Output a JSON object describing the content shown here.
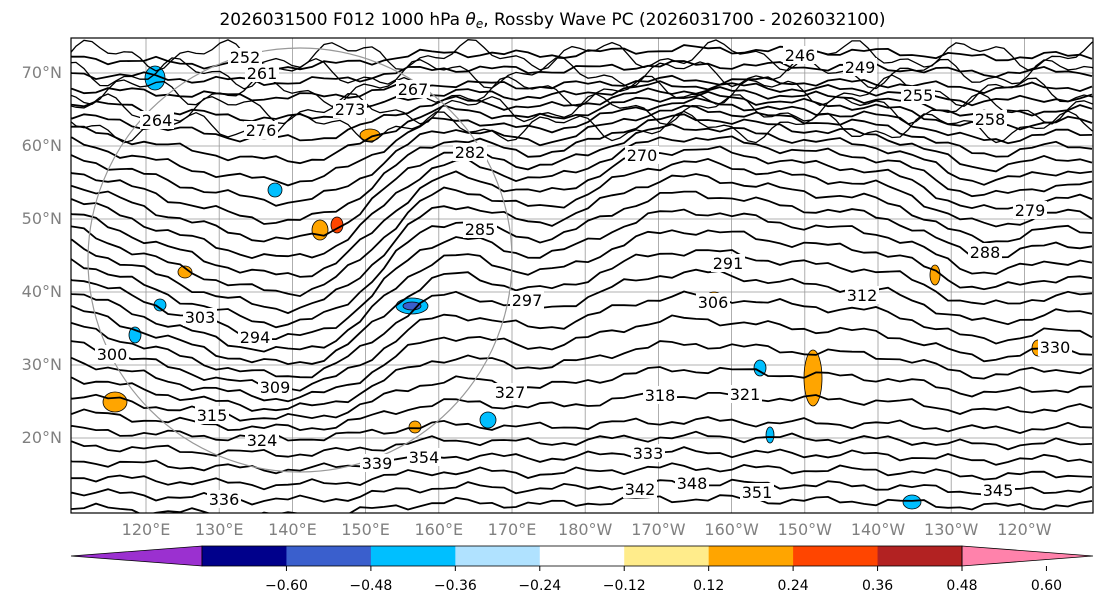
{
  "title": {
    "prefix": "2026031500 F012 1000 hPa ",
    "theta": "θ",
    "sub": "e",
    "suffix": ", Rossby Wave PC (2026031700 - 2026032100)"
  },
  "lat_labels": [
    "70°N",
    "60°N",
    "50°N",
    "40°N",
    "30°N",
    "20°N"
  ],
  "lon_labels": [
    "120°E",
    "130°E",
    "140°E",
    "150°E",
    "160°E",
    "170°E",
    "180°W",
    "170°W",
    "160°W",
    "150°W",
    "140°W",
    "130°W",
    "120°W"
  ],
  "contour_labels": [
    "252",
    "261",
    "246",
    "249",
    "255",
    "258",
    "264",
    "267",
    "276",
    "273",
    "270",
    "279",
    "282",
    "285",
    "288",
    "291",
    "294",
    "297",
    "300",
    "303",
    "306",
    "309",
    "312",
    "315",
    "318",
    "321",
    "324",
    "327",
    "330",
    "333",
    "336",
    "339",
    "342",
    "345",
    "348",
    "351",
    "354"
  ],
  "colorbar": {
    "ticks": [
      "−0.60",
      "−0.48",
      "−0.36",
      "−0.24",
      "−0.12",
      "0.12",
      "0.24",
      "0.36",
      "0.48",
      "0.60"
    ],
    "colors": [
      "#9b30d0",
      "#00008b",
      "#3a5fcd",
      "#00bfff",
      "#b0e2ff",
      "#ffffff",
      "#ffec8b",
      "#ffa500",
      "#ff4500",
      "#b22222",
      "#ff82ab"
    ]
  }
}
